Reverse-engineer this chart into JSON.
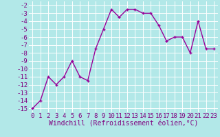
{
  "x": [
    0,
    1,
    2,
    3,
    4,
    5,
    6,
    7,
    8,
    9,
    10,
    11,
    12,
    13,
    14,
    15,
    16,
    17,
    18,
    19,
    20,
    21,
    22,
    23
  ],
  "y": [
    -15,
    -14,
    -11,
    -12,
    -11,
    -9,
    -11,
    -11.5,
    -7.5,
    -5,
    -2.5,
    -3.5,
    -2.5,
    -2.5,
    -3,
    -3,
    -4.5,
    -6.5,
    -6,
    -6,
    -8,
    -4,
    -7.5,
    -7.5
  ],
  "line_color": "#990099",
  "marker": "+",
  "bg_color": "#b2e8e8",
  "grid_color": "#ffffff",
  "xlabel": "Windchill (Refroidissement éolien,°C)",
  "xlim_min": -0.5,
  "xlim_max": 23.5,
  "ylim_min": -15.5,
  "ylim_max": -1.5,
  "yticks": [
    -15,
    -14,
    -13,
    -12,
    -11,
    -10,
    -9,
    -8,
    -7,
    -6,
    -5,
    -4,
    -3,
    -2
  ],
  "xticks": [
    0,
    1,
    2,
    3,
    4,
    5,
    6,
    7,
    8,
    9,
    10,
    11,
    12,
    13,
    14,
    15,
    16,
    17,
    18,
    19,
    20,
    21,
    22,
    23
  ],
  "font_color": "#800080",
  "tick_fontsize": 6.5,
  "xlabel_fontsize": 7.0,
  "linewidth": 1.0,
  "markersize": 3.5,
  "markeredgewidth": 1.0
}
